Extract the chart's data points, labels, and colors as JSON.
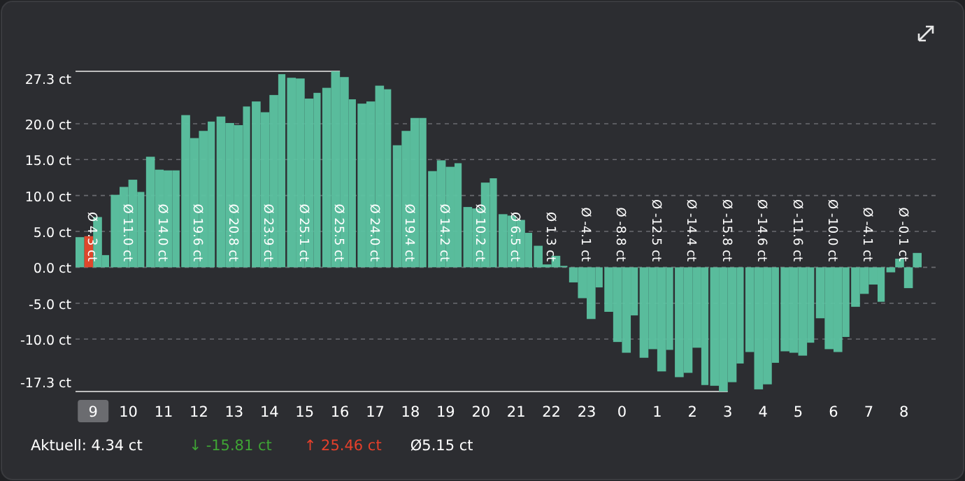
{
  "chart_data": {
    "type": "bar",
    "categories": [
      null,
      "9",
      null,
      null,
      null,
      "10",
      null,
      null,
      null,
      "11",
      null,
      null,
      null,
      "12",
      null,
      null,
      null,
      "13",
      null,
      null,
      null,
      "14",
      null,
      null,
      null,
      "15",
      null,
      null,
      null,
      "16",
      null,
      null,
      null,
      "17",
      null,
      null,
      null,
      "18",
      null,
      null,
      null,
      "19",
      null,
      null,
      null,
      "20",
      null,
      null,
      null,
      "21",
      null,
      null,
      null,
      "22",
      null,
      null,
      null,
      "23",
      null,
      null,
      null,
      "0",
      null,
      null,
      null,
      "1",
      null,
      null,
      null,
      "2",
      null,
      null,
      null,
      "3",
      null,
      null,
      null,
      "4",
      null,
      null,
      null,
      "5",
      null,
      null,
      null,
      "6",
      null,
      null,
      null,
      "7",
      null,
      null,
      null,
      "8",
      null,
      null
    ],
    "values": [
      4.2,
      4.34,
      7.0,
      1.7,
      10.1,
      11.2,
      12.2,
      10.5,
      15.4,
      13.6,
      13.5,
      13.5,
      21.2,
      18.0,
      19.0,
      20.3,
      21.0,
      20.1,
      19.8,
      22.4,
      23.1,
      21.6,
      24.0,
      26.9,
      26.4,
      26.3,
      23.5,
      24.3,
      25.0,
      27.3,
      26.5,
      23.4,
      22.8,
      23.1,
      25.3,
      24.8,
      17.0,
      19.0,
      20.8,
      20.8,
      13.4,
      14.9,
      14.0,
      14.5,
      8.4,
      8.2,
      11.8,
      12.4,
      7.4,
      7.2,
      6.6,
      4.8,
      3.0,
      0.4,
      1.6,
      0.2,
      -2.1,
      -4.3,
      -7.2,
      -2.8,
      -6.2,
      -10.4,
      -11.9,
      -6.7,
      -12.6,
      -11.4,
      -14.5,
      -11.5,
      -15.3,
      -14.7,
      -11.2,
      -16.4,
      -16.5,
      -17.3,
      -16.0,
      -13.4,
      -11.8,
      -17.0,
      -16.3,
      -13.3,
      -11.7,
      -11.9,
      -12.3,
      -10.5,
      -7.1,
      -11.4,
      -11.8,
      -9.7,
      -5.5,
      -3.7,
      -2.4,
      -4.8,
      -0.7,
      1.2,
      -2.9,
      2.0
    ],
    "colors": [
      "#5cc4a2",
      "#e8492c",
      "#5cc4a2",
      "#5cc4a2",
      "#5cc4a2",
      "#5cc4a2",
      "#5cc4a2",
      "#5cc4a2",
      "#5cc4a2",
      "#5cc4a2",
      "#5cc4a2",
      "#5cc4a2",
      "#5cc4a2",
      "#5cc4a2",
      "#5cc4a2",
      "#5cc4a2",
      "#5cc4a2",
      "#5cc4a2",
      "#5cc4a2",
      "#5cc4a2",
      "#5cc4a2",
      "#5cc4a2",
      "#5cc4a2",
      "#5cc4a2",
      "#5cc4a2",
      "#5cc4a2",
      "#5cc4a2",
      "#5cc4a2",
      "#5cc4a2",
      "#5cc4a2",
      "#5cc4a2",
      "#5cc4a2",
      "#5cc4a2",
      "#5cc4a2",
      "#5cc4a2",
      "#5cc4a2",
      "#5cc4a2",
      "#5cc4a2",
      "#5cc4a2",
      "#5cc4a2",
      "#5cc4a2",
      "#5cc4a2",
      "#5cc4a2",
      "#5cc4a2",
      "#5cc4a2",
      "#5cc4a2",
      "#5cc4a2",
      "#5cc4a2",
      "#5cc4a2",
      "#5cc4a2",
      "#5cc4a2",
      "#5cc4a2",
      "#5cc4a2",
      "#5cc4a2",
      "#5cc4a2",
      "#5cc4a2",
      "#5cc4a2",
      "#5cc4a2",
      "#5cc4a2",
      "#5cc4a2",
      "#5cc4a2",
      "#5cc4a2",
      "#5cc4a2",
      "#5cc4a2",
      "#5cc4a2",
      "#5cc4a2",
      "#5cc4a2",
      "#5cc4a2",
      "#5cc4a2",
      "#5cc4a2",
      "#5cc4a2",
      "#5cc4a2",
      "#5cc4a2",
      "#5cc4a2",
      "#5cc4a2",
      "#5cc4a2",
      "#5cc4a2",
      "#5cc4a2",
      "#5cc4a2",
      "#5cc4a2",
      "#5cc4a2",
      "#5cc4a2",
      "#5cc4a2",
      "#5cc4a2",
      "#5cc4a2",
      "#5cc4a2",
      "#5cc4a2",
      "#5cc4a2",
      "#5cc4a2",
      "#5cc4a2",
      "#5cc4a2",
      "#5cc4a2",
      "#5cc4a2",
      "#5cc4a2",
      "#5cc4a2",
      "#5cc4a2"
    ],
    "ylim": [
      -17.3,
      27.3
    ],
    "yticks": [
      {
        "value": 27.3,
        "label": "27.3 ct"
      },
      {
        "value": 20,
        "label": "20.0 ct"
      },
      {
        "value": 15,
        "label": "15.0 ct"
      },
      {
        "value": 10,
        "label": "10.0 ct"
      },
      {
        "value": 5,
        "label": "5.0 ct"
      },
      {
        "value": 0,
        "label": "0.0 ct"
      },
      {
        "value": -5,
        "label": "-5.0 ct"
      },
      {
        "value": -10,
        "label": "-10.0 ct"
      },
      {
        "value": -17.3,
        "label": "-17.3 ct"
      }
    ],
    "grid": "y",
    "annotations": [
      {
        "text": "Ø 4.3 ct",
        "x": "9",
        "y": 0.8
      },
      {
        "text": "Ø 11.0 ct",
        "x": "10",
        "y": 0.8
      },
      {
        "text": "Ø 14.0 ct",
        "x": "11",
        "y": 0.8
      },
      {
        "text": "Ø 19.6 ct",
        "x": "12",
        "y": 0.8
      },
      {
        "text": "Ø 20.8 ct",
        "x": "13",
        "y": 0.8
      },
      {
        "text": "Ø 23.9 ct",
        "x": "14",
        "y": 0.8
      },
      {
        "text": "Ø 25.1 ct",
        "x": "15",
        "y": 0.8
      },
      {
        "text": "Ø 25.5 ct",
        "x": "16",
        "y": 0.8
      },
      {
        "text": "Ø 24.0 ct",
        "x": "17",
        "y": 0.8
      },
      {
        "text": "Ø 19.4 ct",
        "x": "18",
        "y": 0.8
      },
      {
        "text": "Ø 14.2 ct",
        "x": "19",
        "y": 0.8
      },
      {
        "text": "Ø 10.2 ct",
        "x": "20",
        "y": 0.8
      },
      {
        "text": "Ø 6.5 ct",
        "x": "21",
        "y": 0.8
      },
      {
        "text": "Ø 1.3 ct",
        "x": "22",
        "y": 0.8
      },
      {
        "text": "Ø -4.1 ct",
        "x": "23",
        "y": 0.8
      },
      {
        "text": "Ø -8.8 ct",
        "x": "0",
        "y": 0.8
      },
      {
        "text": "Ø -12.5 ct",
        "x": "1",
        "y": 0.8
      },
      {
        "text": "Ø -14.4 ct",
        "x": "2",
        "y": 0.8
      },
      {
        "text": "Ø -15.8 ct",
        "x": "3",
        "y": 0.8
      },
      {
        "text": "Ø -14.6 ct",
        "x": "4",
        "y": 0.8
      },
      {
        "text": "Ø -11.6 ct",
        "x": "5",
        "y": 0.8
      },
      {
        "text": "Ø -10.0 ct",
        "x": "6",
        "y": 0.8
      },
      {
        "text": "Ø -4.1 ct",
        "x": "7",
        "y": 0.8
      },
      {
        "text": "Ø -0.1 ct",
        "x": "8",
        "y": 0.8
      },
      "Aktuell: 4.34 ct",
      "↓ -15.81 ct",
      "↑ 25.46 ct",
      "Ø5.15 ct"
    ]
  }
}
